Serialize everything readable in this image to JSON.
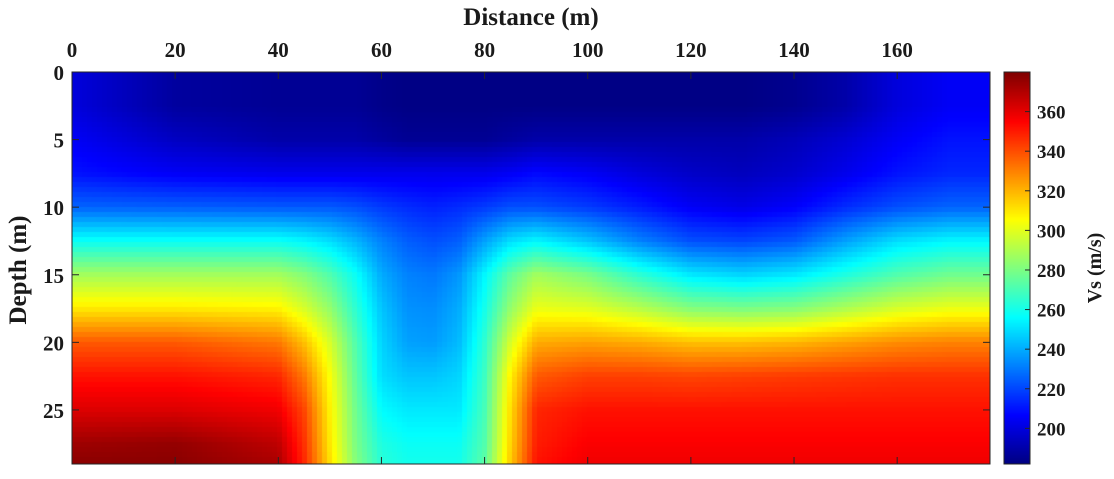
{
  "chart_data": {
    "type": "heatmap",
    "title": "",
    "xlabel": "Distance (m)",
    "ylabel": "Depth (m)",
    "colorbar_label": "Vs (m/s)",
    "colormap": "jet",
    "x_axis_position": "top",
    "y_axis_direction": "down",
    "xlim": [
      0,
      178
    ],
    "ylim": [
      0,
      29
    ],
    "clim": [
      182,
      380
    ],
    "x_ticks": [
      0,
      20,
      40,
      60,
      80,
      100,
      120,
      140,
      160
    ],
    "x_tick_labels": [
      "0",
      "20",
      "40",
      "60",
      "80",
      "100",
      "120",
      "140",
      "160"
    ],
    "y_ticks": [
      0,
      5,
      10,
      15,
      20,
      25
    ],
    "y_tick_labels": [
      "0",
      "5",
      "10",
      "15",
      "20",
      "25"
    ],
    "colorbar_ticks": [
      200,
      220,
      240,
      260,
      280,
      300,
      320,
      340,
      360
    ],
    "colorbar_tick_labels": [
      "200",
      "220",
      "240",
      "260",
      "280",
      "300",
      "320",
      "340",
      "360"
    ],
    "grid": false,
    "x": [
      0,
      20,
      40,
      45,
      50,
      55,
      60,
      65,
      70,
      75,
      80,
      85,
      90,
      100,
      110,
      120,
      130,
      140,
      150,
      160,
      170,
      178
    ],
    "y": [
      0,
      2.5,
      5,
      7.5,
      10,
      12.5,
      15,
      17.5,
      20,
      22.5,
      25,
      27.5,
      29
    ],
    "z": [
      [
        200,
        188,
        186,
        186,
        186,
        186,
        184,
        183,
        183,
        183,
        183,
        183,
        183,
        183,
        183,
        183,
        183,
        185,
        190,
        200,
        205,
        205
      ],
      [
        200,
        188,
        186,
        186,
        186,
        186,
        184,
        183,
        183,
        183,
        183,
        183,
        183,
        183,
        183,
        183,
        183,
        185,
        190,
        200,
        205,
        205
      ],
      [
        205,
        195,
        190,
        190,
        190,
        190,
        188,
        186,
        186,
        186,
        186,
        188,
        190,
        190,
        190,
        190,
        190,
        193,
        198,
        205,
        210,
        210
      ],
      [
        210,
        205,
        203,
        203,
        203,
        203,
        203,
        203,
        203,
        203,
        203,
        205,
        208,
        205,
        200,
        196,
        194,
        197,
        203,
        210,
        214,
        214
      ],
      [
        226,
        225,
        224,
        224,
        224,
        222,
        218,
        215,
        213,
        215,
        218,
        222,
        222,
        218,
        212,
        205,
        202,
        206,
        215,
        222,
        226,
        226
      ],
      [
        258,
        258,
        258,
        255,
        250,
        242,
        232,
        225,
        222,
        225,
        238,
        250,
        255,
        245,
        232,
        222,
        220,
        224,
        238,
        250,
        255,
        255
      ],
      [
        288,
        288,
        288,
        282,
        272,
        258,
        240,
        232,
        230,
        236,
        255,
        275,
        288,
        280,
        265,
        252,
        248,
        252,
        262,
        272,
        278,
        278
      ],
      [
        310,
        310,
        308,
        298,
        285,
        265,
        245,
        235,
        234,
        240,
        260,
        285,
        302,
        300,
        292,
        282,
        280,
        282,
        290,
        298,
        302,
        302
      ],
      [
        338,
        338,
        332,
        318,
        298,
        272,
        248,
        238,
        237,
        243,
        265,
        298,
        322,
        324,
        322,
        318,
        318,
        320,
        324,
        328,
        330,
        330
      ],
      [
        352,
        352,
        348,
        332,
        305,
        275,
        250,
        245,
        245,
        248,
        268,
        308,
        338,
        343,
        343,
        342,
        343,
        344,
        345,
        346,
        346,
        346
      ],
      [
        362,
        362,
        358,
        342,
        308,
        278,
        256,
        252,
        252,
        252,
        270,
        312,
        348,
        352,
        352,
        352,
        352,
        352,
        352,
        352,
        352,
        352
      ],
      [
        374,
        376,
        368,
        346,
        310,
        280,
        262,
        258,
        258,
        258,
        272,
        314,
        350,
        356,
        356,
        356,
        356,
        356,
        356,
        356,
        356,
        356
      ],
      [
        378,
        378,
        372,
        348,
        312,
        282,
        264,
        260,
        260,
        260,
        274,
        316,
        352,
        358,
        358,
        358,
        358,
        358,
        358,
        358,
        358,
        358
      ]
    ]
  }
}
